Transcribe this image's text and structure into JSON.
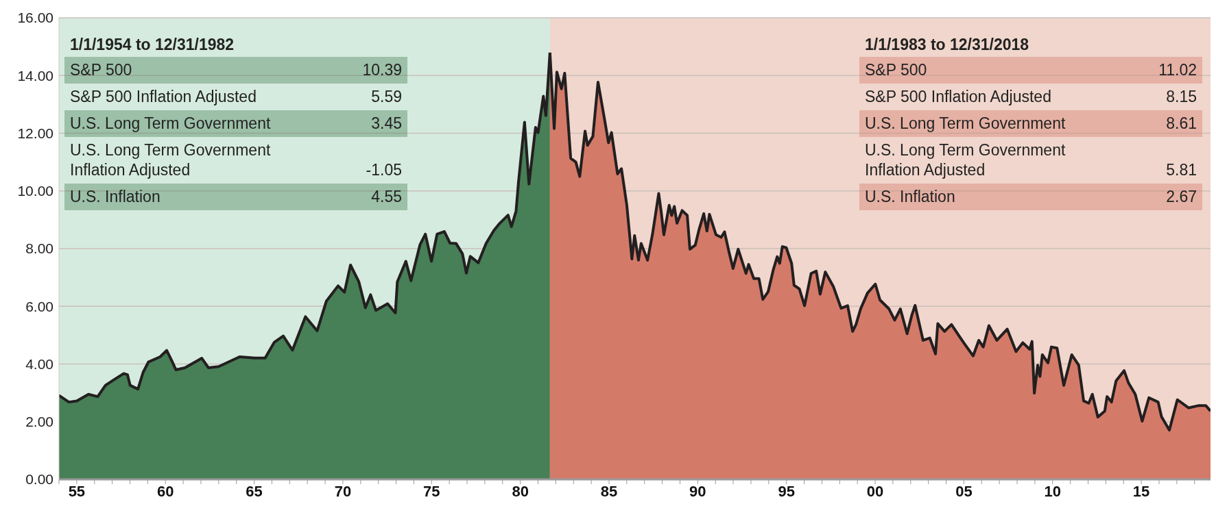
{
  "chart_data": {
    "type": "area",
    "xlim": [
      1954,
      2018.9
    ],
    "xticks": [
      {
        "value": 1954,
        "label": null
      },
      {
        "value": 1955,
        "label": "55"
      },
      {
        "value": 1956,
        "label": null
      },
      {
        "value": 1957,
        "label": null
      },
      {
        "value": 1958,
        "label": null
      },
      {
        "value": 1959,
        "label": null
      },
      {
        "value": 1960,
        "label": "60"
      },
      {
        "value": 1961,
        "label": null
      },
      {
        "value": 1962,
        "label": null
      },
      {
        "value": 1963,
        "label": null
      },
      {
        "value": 1964,
        "label": null
      },
      {
        "value": 1965,
        "label": "65"
      },
      {
        "value": 1966,
        "label": null
      },
      {
        "value": 1967,
        "label": null
      },
      {
        "value": 1968,
        "label": null
      },
      {
        "value": 1969,
        "label": null
      },
      {
        "value": 1970,
        "label": "70"
      },
      {
        "value": 1971,
        "label": null
      },
      {
        "value": 1972,
        "label": null
      },
      {
        "value": 1973,
        "label": null
      },
      {
        "value": 1974,
        "label": null
      },
      {
        "value": 1975,
        "label": "75"
      },
      {
        "value": 1976,
        "label": null
      },
      {
        "value": 1977,
        "label": null
      },
      {
        "value": 1978,
        "label": null
      },
      {
        "value": 1979,
        "label": null
      },
      {
        "value": 1980,
        "label": "80"
      },
      {
        "value": 1981,
        "label": null
      },
      {
        "value": 1982,
        "label": null
      },
      {
        "value": 1983,
        "label": null
      },
      {
        "value": 1984,
        "label": null
      },
      {
        "value": 1985,
        "label": "85"
      },
      {
        "value": 1986,
        "label": null
      },
      {
        "value": 1987,
        "label": null
      },
      {
        "value": 1988,
        "label": null
      },
      {
        "value": 1989,
        "label": null
      },
      {
        "value": 1990,
        "label": "90"
      },
      {
        "value": 1991,
        "label": null
      },
      {
        "value": 1992,
        "label": null
      },
      {
        "value": 1993,
        "label": null
      },
      {
        "value": 1994,
        "label": null
      },
      {
        "value": 1995,
        "label": "95"
      },
      {
        "value": 1996,
        "label": null
      },
      {
        "value": 1997,
        "label": null
      },
      {
        "value": 1998,
        "label": null
      },
      {
        "value": 1999,
        "label": null
      },
      {
        "value": 2000,
        "label": "00"
      },
      {
        "value": 2001,
        "label": null
      },
      {
        "value": 2002,
        "label": null
      },
      {
        "value": 2003,
        "label": null
      },
      {
        "value": 2004,
        "label": null
      },
      {
        "value": 2005,
        "label": "05"
      },
      {
        "value": 2006,
        "label": null
      },
      {
        "value": 2007,
        "label": null
      },
      {
        "value": 2008,
        "label": null
      },
      {
        "value": 2009,
        "label": null
      },
      {
        "value": 2010,
        "label": "10"
      },
      {
        "value": 2011,
        "label": null
      },
      {
        "value": 2012,
        "label": null
      },
      {
        "value": 2013,
        "label": null
      },
      {
        "value": 2014,
        "label": null
      },
      {
        "value": 2015,
        "label": "15"
      },
      {
        "value": 2016,
        "label": null
      },
      {
        "value": 2017,
        "label": null
      },
      {
        "value": 2018,
        "label": null
      }
    ],
    "ylim": [
      0,
      16
    ],
    "yticks": [
      {
        "value": 0,
        "label": "0.00"
      },
      {
        "value": 2,
        "label": "2.00"
      },
      {
        "value": 4,
        "label": "4.00"
      },
      {
        "value": 6,
        "label": "6.00"
      },
      {
        "value": 8,
        "label": "8.00"
      },
      {
        "value": 10,
        "label": "10.00"
      },
      {
        "value": 12,
        "label": "12.00"
      },
      {
        "value": 14,
        "label": "14.00"
      },
      {
        "value": 16,
        "label": "16.00"
      }
    ],
    "grid": "y",
    "bands": [
      {
        "axis": "x",
        "from": 1954,
        "to": 1981.67,
        "color": "#d6ebdf"
      },
      {
        "axis": "x",
        "from": 1981.67,
        "to": 2018.9,
        "color": "#f0d6cc"
      }
    ],
    "series": [
      {
        "color": "#477f56",
        "x": [
          1954,
          1954.56,
          1955.0,
          1955.66,
          1956.18,
          1956.62,
          1957.06,
          1957.65,
          1957.86,
          1958.01,
          1958.45,
          1958.74,
          1959.04,
          1959.7,
          1960.07,
          1960.36,
          1960.59,
          1961.1,
          1962.05,
          1962.42,
          1963.0,
          1964.18,
          1965.03,
          1965.62,
          1966.13,
          1966.64,
          1967.16,
          1967.89,
          1968.55,
          1969.07,
          1969.73,
          1970.09,
          1970.43,
          1970.9,
          1971.27,
          1971.56,
          1971.86,
          1972.52,
          1972.96,
          1973.07,
          1973.55,
          1973.84,
          1974.35,
          1974.65,
          1974.99,
          1975.31,
          1975.72,
          1976.04,
          1976.38,
          1976.74,
          1976.96,
          1977.18,
          1977.63,
          1978.07,
          1978.51,
          1978.8,
          1979.31,
          1979.5,
          1979.76,
          1979.9,
          1980.24,
          1980.49,
          1980.86,
          1981.0,
          1981.3,
          1981.44,
          1981.67
        ],
        "values": [
          2.91,
          2.68,
          2.72,
          2.95,
          2.87,
          3.26,
          3.44,
          3.67,
          3.63,
          3.26,
          3.13,
          3.71,
          4.07,
          4.25,
          4.47,
          4.11,
          3.8,
          3.87,
          4.2,
          3.87,
          3.91,
          4.25,
          4.21,
          4.21,
          4.75,
          4.97,
          4.48,
          5.64,
          5.15,
          6.18,
          6.71,
          6.49,
          7.43,
          6.85,
          5.95,
          6.4,
          5.86,
          6.09,
          5.77,
          6.85,
          7.56,
          6.89,
          8.14,
          8.5,
          7.56,
          8.5,
          8.59,
          8.19,
          8.18,
          7.82,
          7.15,
          7.73,
          7.51,
          8.18,
          8.63,
          8.85,
          9.16,
          8.76,
          9.3,
          10.32,
          12.38,
          10.24,
          12.2,
          12.02,
          13.28,
          12.61,
          14.79
        ]
      },
      {
        "color": "#d47a69",
        "x": [
          1981.67,
          1981.91,
          1982.06,
          1982.32,
          1982.5,
          1982.84,
          1983.13,
          1983.35,
          1983.65,
          1983.79,
          1984.09,
          1984.38,
          1984.75,
          1984.97,
          1985.14,
          1985.48,
          1985.7,
          1986.0,
          1986.29,
          1986.44,
          1986.66,
          1986.81,
          1987.17,
          1987.45,
          1987.8,
          1987.94,
          1988.09,
          1988.39,
          1988.53,
          1988.68,
          1988.83,
          1989.12,
          1989.41,
          1989.56,
          1989.86,
          1990.07,
          1990.34,
          1990.52,
          1990.66,
          1991.03,
          1991.32,
          1991.51,
          1991.76,
          1991.99,
          1992.28,
          1992.72,
          1992.87,
          1993.16,
          1993.45,
          1993.67,
          1993.97,
          1994.26,
          1994.48,
          1994.62,
          1994.77,
          1994.99,
          1995.29,
          1995.43,
          1995.73,
          1996.02,
          1996.39,
          1996.68,
          1996.9,
          1997.19,
          1997.64,
          1998.08,
          1998.45,
          1998.73,
          1998.92,
          1999.18,
          1999.57,
          2000.01,
          2000.27,
          2000.78,
          2001.1,
          2001.42,
          2001.8,
          2002.06,
          2002.25,
          2002.7,
          2003.08,
          2003.4,
          2003.53,
          2003.91,
          2004.3,
          2004.81,
          2005.07,
          2005.52,
          2005.84,
          2006.09,
          2006.41,
          2006.86,
          2007.44,
          2007.94,
          2008.32,
          2008.71,
          2008.84,
          2008.97,
          2009.16,
          2009.29,
          2009.42,
          2009.74,
          2009.93,
          2010.25,
          2010.63,
          2011.08,
          2011.47,
          2011.75,
          2012.04,
          2012.24,
          2012.55,
          2012.94,
          2013.07,
          2013.32,
          2013.58,
          2014.03,
          2014.28,
          2014.66,
          2015.05,
          2015.43,
          2015.95,
          2016.14,
          2016.58,
          2017.03,
          2017.67,
          2018.25,
          2018.63,
          2018.9
        ],
        "values": [
          14.79,
          12.16,
          14.12,
          13.54,
          14.08,
          11.13,
          11.0,
          10.5,
          12.07,
          11.58,
          11.89,
          13.77,
          12.47,
          11.67,
          12.02,
          10.59,
          10.77,
          9.52,
          7.64,
          8.45,
          7.6,
          8.18,
          7.6,
          8.5,
          9.91,
          9.28,
          8.48,
          9.5,
          9.15,
          9.46,
          8.88,
          9.32,
          9.15,
          7.98,
          8.12,
          8.65,
          9.21,
          8.61,
          9.19,
          8.48,
          8.39,
          8.58,
          7.89,
          7.31,
          7.98,
          7.14,
          7.45,
          6.96,
          6.96,
          6.24,
          6.51,
          7.27,
          7.72,
          7.49,
          8.07,
          8.03,
          7.49,
          6.73,
          6.6,
          6.02,
          7.14,
          7.22,
          6.42,
          7.19,
          6.69,
          5.93,
          6.02,
          5.13,
          5.37,
          5.91,
          6.46,
          6.77,
          6.22,
          5.91,
          5.52,
          5.91,
          5.05,
          5.68,
          6.03,
          4.82,
          4.9,
          4.35,
          5.4,
          5.13,
          5.37,
          4.9,
          4.67,
          4.28,
          4.82,
          4.59,
          5.33,
          4.82,
          5.21,
          4.43,
          4.74,
          4.51,
          4.78,
          2.99,
          3.96,
          3.57,
          4.32,
          4.04,
          4.59,
          4.55,
          3.26,
          4.32,
          3.96,
          2.72,
          2.64,
          2.95,
          2.16,
          2.37,
          2.87,
          2.68,
          3.42,
          3.77,
          3.34,
          2.95,
          2.02,
          2.83,
          2.68,
          2.17,
          1.71,
          2.76,
          2.48,
          2.56,
          2.56,
          2.37
        ]
      }
    ],
    "annotations": [
      "1/1/1954 to 12/31/1982",
      "S&P 500",
      "10.39",
      "S&P 500 Inflation Adjusted",
      "5.59",
      "U.S. Long Term Government",
      "3.45",
      "U.S. Long Term Government Inflation Adjusted",
      "-1.05",
      "U.S. Inflation",
      "4.55",
      "1/1/1983 to 12/31/2018",
      "S&P 500",
      "11.02",
      "S&P 500 Inflation Adjusted",
      "8.15",
      "U.S. Long Term Government",
      "8.61",
      "U.S. Long Term Government Inflation Adjusted",
      "5.81",
      "U.S. Inflation",
      "2.67"
    ]
  }
}
